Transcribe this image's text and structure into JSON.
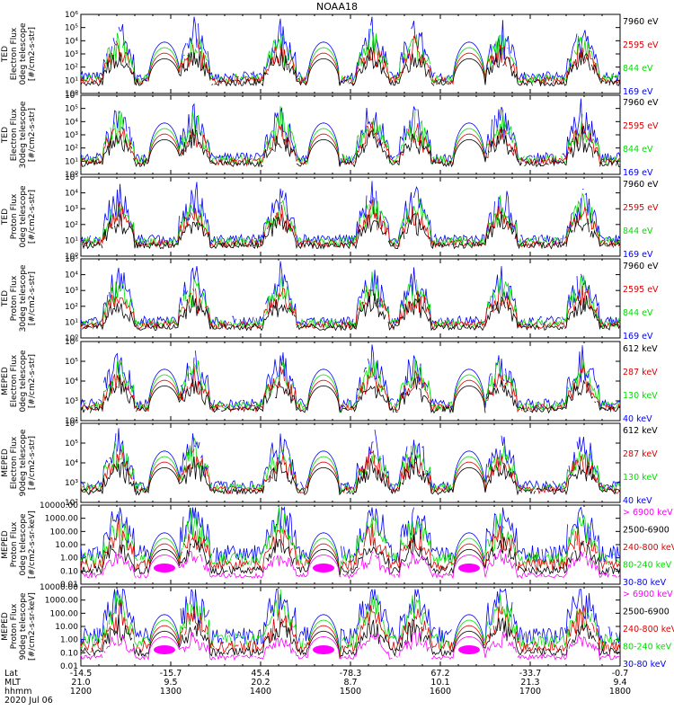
{
  "title": "NOAA18",
  "date": "2020 Jul 06",
  "colors": {
    "black": "#000000",
    "red": "#e00000",
    "green": "#00e000",
    "blue": "#0000ff",
    "magenta": "#ff00ff"
  },
  "xaxis": {
    "row_labels": [
      "Lat",
      "MLT",
      "hhmm"
    ],
    "columns": [
      {
        "lat": "-14.5",
        "mlt": "21.0",
        "hhmm": "1200"
      },
      {
        "lat": "-15.7",
        "mlt": "9.5",
        "hhmm": "1300"
      },
      {
        "lat": "45.4",
        "mlt": "20.2",
        "hhmm": "1400"
      },
      {
        "lat": "-78.3",
        "mlt": "8.7",
        "hhmm": "1500"
      },
      {
        "lat": "67.2",
        "mlt": "10.1",
        "hhmm": "1600"
      },
      {
        "lat": "-33.7",
        "mlt": "21.3",
        "hhmm": "1700"
      },
      {
        "lat": "-0.7",
        "mlt": "9.4",
        "hhmm": "1800"
      }
    ]
  },
  "chart_data": [
    {
      "type": "line",
      "ylabel": [
        "TED",
        "Electron Flux",
        "0deg telescope",
        "[#/cm2-s-str]"
      ],
      "yscale": "log",
      "ylim_exp": [
        0,
        6
      ],
      "ytick_labels": [
        "10⁰",
        "10¹",
        "10²",
        "10³",
        "10⁴",
        "10⁵",
        "10⁶"
      ],
      "legend": [
        {
          "label": "7960 eV",
          "color": "black"
        },
        {
          "label": "2595 eV",
          "color": "red"
        },
        {
          "label": "844 eV",
          "color": "green"
        },
        {
          "label": "169 eV",
          "color": "blue"
        }
      ]
    },
    {
      "type": "line",
      "ylabel": [
        "TED",
        "Electron Flux",
        "30deg telescope",
        "[#/cm2-s-str]"
      ],
      "yscale": "log",
      "ylim_exp": [
        0,
        6
      ],
      "ytick_labels": [
        "10⁰",
        "10¹",
        "10²",
        "10³",
        "10⁴",
        "10⁵",
        "10⁶"
      ],
      "legend": [
        {
          "label": "7960 eV",
          "color": "black"
        },
        {
          "label": "2595 eV",
          "color": "red"
        },
        {
          "label": "844 eV",
          "color": "green"
        },
        {
          "label": "169 eV",
          "color": "blue"
        }
      ]
    },
    {
      "type": "line",
      "ylabel": [
        "TED",
        "Proton Flux",
        "0deg telescope",
        "[#/cm2-s-str]"
      ],
      "yscale": "log",
      "ylim_exp": [
        0,
        5
      ],
      "ytick_labels": [
        "10⁰",
        "10¹",
        "10²",
        "10³",
        "10⁴",
        "10⁵"
      ],
      "legend": [
        {
          "label": "7960 eV",
          "color": "black"
        },
        {
          "label": "2595 eV",
          "color": "red"
        },
        {
          "label": "844 eV",
          "color": "green"
        },
        {
          "label": "169 eV",
          "color": "blue"
        }
      ]
    },
    {
      "type": "line",
      "ylabel": [
        "TED",
        "Proton Flux",
        "30deg telescope",
        "[#/cm2-s-str]"
      ],
      "yscale": "log",
      "ylim_exp": [
        0,
        5
      ],
      "ytick_labels": [
        "10⁰",
        "10¹",
        "10²",
        "10³",
        "10⁴",
        "10⁵"
      ],
      "legend": [
        {
          "label": "7960 eV",
          "color": "black"
        },
        {
          "label": "2595 eV",
          "color": "red"
        },
        {
          "label": "844 eV",
          "color": "green"
        },
        {
          "label": "169 eV",
          "color": "blue"
        }
      ]
    },
    {
      "type": "line",
      "ylabel": [
        "MEPED",
        "Electron Flux",
        "0deg telescope",
        "[#/cm2-s-str]"
      ],
      "yscale": "log",
      "ylim_exp": [
        2,
        6
      ],
      "ytick_labels": [
        "10²",
        "10³",
        "10⁴",
        "10⁵",
        "10⁶"
      ],
      "legend": [
        {
          "label": "612 keV",
          "color": "black"
        },
        {
          "label": "287 keV",
          "color": "red"
        },
        {
          "label": "130 keV",
          "color": "green"
        },
        {
          "label": "40 keV",
          "color": "blue"
        }
      ]
    },
    {
      "type": "line",
      "ylabel": [
        "MEPED",
        "Electron Flux",
        "90deg telescope",
        "[#/cm2-s-str]"
      ],
      "yscale": "log",
      "ylim_exp": [
        2,
        6
      ],
      "ytick_labels": [
        "10²",
        "10³",
        "10⁴",
        "10⁵",
        "10⁶"
      ],
      "legend": [
        {
          "label": "612 keV",
          "color": "black"
        },
        {
          "label": "287 keV",
          "color": "red"
        },
        {
          "label": "130 keV",
          "color": "green"
        },
        {
          "label": "40 keV",
          "color": "blue"
        }
      ]
    },
    {
      "type": "line",
      "ylabel": [
        "MEPED",
        "Proton Flux",
        "0deg telescope",
        "[#/cm2-s-sr-keV]"
      ],
      "yscale": "log",
      "ylim_exp": [
        -2,
        4
      ],
      "ytick_labels": [
        "0.01",
        "0.10",
        "1.00",
        "10.00",
        "100.00",
        "1000.00",
        "10000.00"
      ],
      "legend": [
        {
          "label": "> 6900 keV",
          "color": "magenta"
        },
        {
          "label": "2500-6900",
          "color": "black"
        },
        {
          "label": "240-800 keV",
          "color": "red"
        },
        {
          "label": "80-240 keV",
          "color": "green"
        },
        {
          "label": "30-80 keV",
          "color": "blue"
        }
      ]
    },
    {
      "type": "line",
      "ylabel": [
        "MEPED",
        "Proton Flux",
        "90deg telescope",
        "[#/cm2-s-sr-keV]"
      ],
      "yscale": "log",
      "ylim_exp": [
        -2,
        4
      ],
      "ytick_labels": [
        "0.01",
        "0.10",
        "1.00",
        "10.00",
        "100.00",
        "1000.00",
        "10000.00"
      ],
      "legend": [
        {
          "label": "> 6900 keV",
          "color": "magenta"
        },
        {
          "label": "2500-6900",
          "color": "black"
        },
        {
          "label": "240-800 keV",
          "color": "red"
        },
        {
          "label": "80-240 keV",
          "color": "green"
        },
        {
          "label": "30-80 keV",
          "color": "blue"
        }
      ]
    }
  ]
}
